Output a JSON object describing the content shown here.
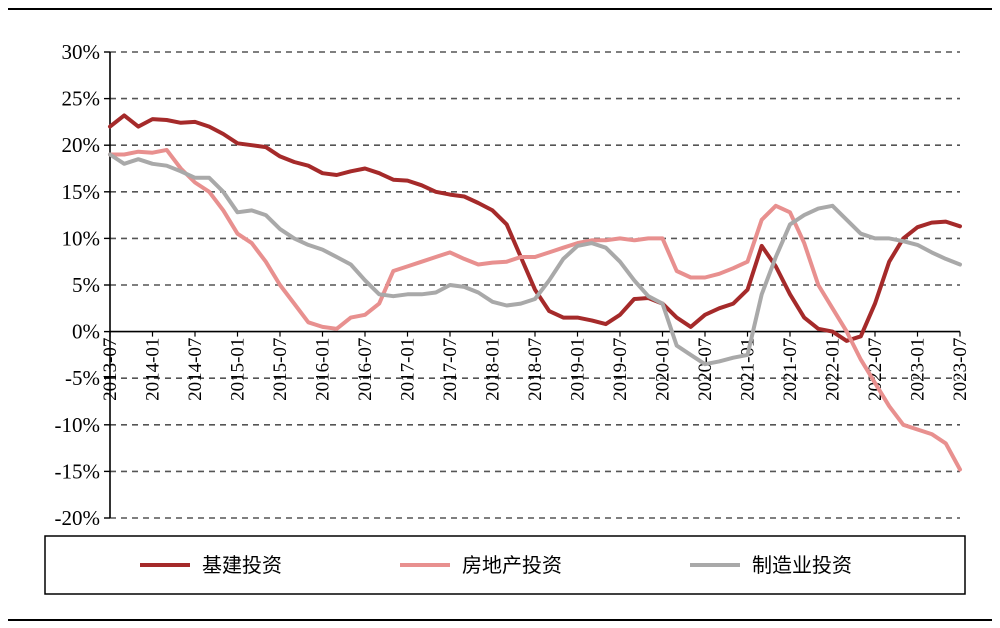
{
  "chart_data": {
    "type": "line",
    "title": "",
    "xlabel": "",
    "ylabel": "",
    "ylim": [
      -0.2,
      0.3
    ],
    "grid": "horizontal dashed",
    "legend_position": "bottom",
    "y_ticks": [
      "30%",
      "25%",
      "20%",
      "15%",
      "10%",
      "5%",
      "0%",
      "-5%",
      "-10%",
      "-15%",
      "-20%"
    ],
    "x_ticks": [
      "2013-07",
      "2014-01",
      "2014-07",
      "2015-01",
      "2015-07",
      "2016-01",
      "2016-07",
      "2017-01",
      "2017-07",
      "2018-01",
      "2018-07",
      "2019-01",
      "2019-07",
      "2020-01",
      "2020-07",
      "2021-01",
      "2021-07",
      "2022-01",
      "2022-07",
      "2023-01",
      "2023-07"
    ],
    "series": [
      {
        "name": "基建投资",
        "color": "#a52a2a",
        "points": [
          [
            "2013-07",
            0.22
          ],
          [
            "2013-09",
            0.232
          ],
          [
            "2013-11",
            0.22
          ],
          [
            "2014-01",
            0.228
          ],
          [
            "2014-03",
            0.227
          ],
          [
            "2014-05",
            0.224
          ],
          [
            "2014-07",
            0.225
          ],
          [
            "2014-09",
            0.22
          ],
          [
            "2014-11",
            0.212
          ],
          [
            "2015-01",
            0.202
          ],
          [
            "2015-03",
            0.2
          ],
          [
            "2015-05",
            0.198
          ],
          [
            "2015-07",
            0.188
          ],
          [
            "2015-09",
            0.182
          ],
          [
            "2015-11",
            0.178
          ],
          [
            "2016-01",
            0.17
          ],
          [
            "2016-03",
            0.168
          ],
          [
            "2016-05",
            0.172
          ],
          [
            "2016-07",
            0.175
          ],
          [
            "2016-09",
            0.17
          ],
          [
            "2016-11",
            0.163
          ],
          [
            "2017-01",
            0.162
          ],
          [
            "2017-03",
            0.157
          ],
          [
            "2017-05",
            0.15
          ],
          [
            "2017-07",
            0.147
          ],
          [
            "2017-09",
            0.145
          ],
          [
            "2017-11",
            0.138
          ],
          [
            "2018-01",
            0.13
          ],
          [
            "2018-03",
            0.115
          ],
          [
            "2018-05",
            0.08
          ],
          [
            "2018-07",
            0.045
          ],
          [
            "2018-09",
            0.022
          ],
          [
            "2018-11",
            0.015
          ],
          [
            "2019-01",
            0.015
          ],
          [
            "2019-03",
            0.012
          ],
          [
            "2019-05",
            0.008
          ],
          [
            "2019-07",
            0.018
          ],
          [
            "2019-09",
            0.035
          ],
          [
            "2019-11",
            0.036
          ],
          [
            "2020-01",
            0.03
          ],
          [
            "2020-03",
            0.015
          ],
          [
            "2020-05",
            0.005
          ],
          [
            "2020-07",
            0.018
          ],
          [
            "2020-09",
            0.025
          ],
          [
            "2020-11",
            0.03
          ],
          [
            "2021-01",
            0.045
          ],
          [
            "2021-03",
            0.092
          ],
          [
            "2021-05",
            0.07
          ],
          [
            "2021-07",
            0.04
          ],
          [
            "2021-09",
            0.015
          ],
          [
            "2021-11",
            0.003
          ],
          [
            "2022-01",
            0.0
          ],
          [
            "2022-03",
            -0.01
          ],
          [
            "2022-05",
            -0.005
          ],
          [
            "2022-07",
            0.03
          ],
          [
            "2022-09",
            0.075
          ],
          [
            "2022-11",
            0.1
          ],
          [
            "2023-01",
            0.112
          ],
          [
            "2023-03",
            0.117
          ],
          [
            "2023-05",
            0.118
          ],
          [
            "2023-07",
            0.113
          ]
        ]
      },
      {
        "name": "房地产投资",
        "color": "#e8908f",
        "points": [
          [
            "2013-07",
            0.19
          ],
          [
            "2013-09",
            0.19
          ],
          [
            "2013-11",
            0.193
          ],
          [
            "2014-01",
            0.192
          ],
          [
            "2014-03",
            0.195
          ],
          [
            "2014-05",
            0.175
          ],
          [
            "2014-07",
            0.16
          ],
          [
            "2014-09",
            0.15
          ],
          [
            "2014-11",
            0.13
          ],
          [
            "2015-01",
            0.105
          ],
          [
            "2015-03",
            0.095
          ],
          [
            "2015-05",
            0.075
          ],
          [
            "2015-07",
            0.05
          ],
          [
            "2015-09",
            0.03
          ],
          [
            "2015-11",
            0.01
          ],
          [
            "2016-01",
            0.005
          ],
          [
            "2016-03",
            0.003
          ],
          [
            "2016-05",
            0.015
          ],
          [
            "2016-07",
            0.018
          ],
          [
            "2016-09",
            0.03
          ],
          [
            "2016-11",
            0.065
          ],
          [
            "2017-01",
            0.07
          ],
          [
            "2017-03",
            0.075
          ],
          [
            "2017-05",
            0.08
          ],
          [
            "2017-07",
            0.085
          ],
          [
            "2017-09",
            0.078
          ],
          [
            "2017-11",
            0.072
          ],
          [
            "2018-01",
            0.074
          ],
          [
            "2018-03",
            0.075
          ],
          [
            "2018-05",
            0.08
          ],
          [
            "2018-07",
            0.08
          ],
          [
            "2018-09",
            0.085
          ],
          [
            "2018-11",
            0.09
          ],
          [
            "2019-01",
            0.095
          ],
          [
            "2019-03",
            0.098
          ],
          [
            "2019-05",
            0.098
          ],
          [
            "2019-07",
            0.1
          ],
          [
            "2019-09",
            0.098
          ],
          [
            "2019-11",
            0.1
          ],
          [
            "2020-01",
            0.1
          ],
          [
            "2020-03",
            0.065
          ],
          [
            "2020-05",
            0.058
          ],
          [
            "2020-07",
            0.058
          ],
          [
            "2020-09",
            0.062
          ],
          [
            "2020-11",
            0.068
          ],
          [
            "2021-01",
            0.075
          ],
          [
            "2021-03",
            0.12
          ],
          [
            "2021-05",
            0.135
          ],
          [
            "2021-07",
            0.128
          ],
          [
            "2021-09",
            0.095
          ],
          [
            "2021-11",
            0.05
          ],
          [
            "2022-01",
            0.025
          ],
          [
            "2022-03",
            0.0
          ],
          [
            "2022-05",
            -0.03
          ],
          [
            "2022-07",
            -0.055
          ],
          [
            "2022-09",
            -0.08
          ],
          [
            "2022-11",
            -0.1
          ],
          [
            "2023-01",
            -0.105
          ],
          [
            "2023-03",
            -0.11
          ],
          [
            "2023-05",
            -0.12
          ],
          [
            "2023-07",
            -0.148
          ]
        ]
      },
      {
        "name": "制造业投资",
        "color": "#a9a9a9",
        "points": [
          [
            "2013-07",
            0.19
          ],
          [
            "2013-09",
            0.18
          ],
          [
            "2013-11",
            0.185
          ],
          [
            "2014-01",
            0.18
          ],
          [
            "2014-03",
            0.178
          ],
          [
            "2014-05",
            0.172
          ],
          [
            "2014-07",
            0.165
          ],
          [
            "2014-09",
            0.165
          ],
          [
            "2014-11",
            0.15
          ],
          [
            "2015-01",
            0.128
          ],
          [
            "2015-03",
            0.13
          ],
          [
            "2015-05",
            0.125
          ],
          [
            "2015-07",
            0.11
          ],
          [
            "2015-09",
            0.1
          ],
          [
            "2015-11",
            0.093
          ],
          [
            "2016-01",
            0.088
          ],
          [
            "2016-03",
            0.08
          ],
          [
            "2016-05",
            0.072
          ],
          [
            "2016-07",
            0.055
          ],
          [
            "2016-09",
            0.04
          ],
          [
            "2016-11",
            0.038
          ],
          [
            "2017-01",
            0.04
          ],
          [
            "2017-03",
            0.04
          ],
          [
            "2017-05",
            0.042
          ],
          [
            "2017-07",
            0.05
          ],
          [
            "2017-09",
            0.048
          ],
          [
            "2017-11",
            0.042
          ],
          [
            "2018-01",
            0.032
          ],
          [
            "2018-03",
            0.028
          ],
          [
            "2018-05",
            0.03
          ],
          [
            "2018-07",
            0.035
          ],
          [
            "2018-09",
            0.055
          ],
          [
            "2018-11",
            0.078
          ],
          [
            "2019-01",
            0.092
          ],
          [
            "2019-03",
            0.095
          ],
          [
            "2019-05",
            0.09
          ],
          [
            "2019-07",
            0.075
          ],
          [
            "2019-09",
            0.055
          ],
          [
            "2019-11",
            0.038
          ],
          [
            "2020-01",
            0.03
          ],
          [
            "2020-03",
            -0.015
          ],
          [
            "2020-05",
            -0.025
          ],
          [
            "2020-07",
            -0.035
          ],
          [
            "2020-09",
            -0.032
          ],
          [
            "2020-11",
            -0.028
          ],
          [
            "2021-01",
            -0.025
          ],
          [
            "2021-03",
            0.04
          ],
          [
            "2021-05",
            0.08
          ],
          [
            "2021-07",
            0.115
          ],
          [
            "2021-09",
            0.125
          ],
          [
            "2021-11",
            0.132
          ],
          [
            "2022-01",
            0.135
          ],
          [
            "2022-03",
            0.12
          ],
          [
            "2022-05",
            0.105
          ],
          [
            "2022-07",
            0.1
          ],
          [
            "2022-09",
            0.1
          ],
          [
            "2022-11",
            0.097
          ],
          [
            "2023-01",
            0.093
          ],
          [
            "2023-03",
            0.085
          ],
          [
            "2023-05",
            0.078
          ],
          [
            "2023-07",
            0.072
          ]
        ]
      }
    ]
  }
}
